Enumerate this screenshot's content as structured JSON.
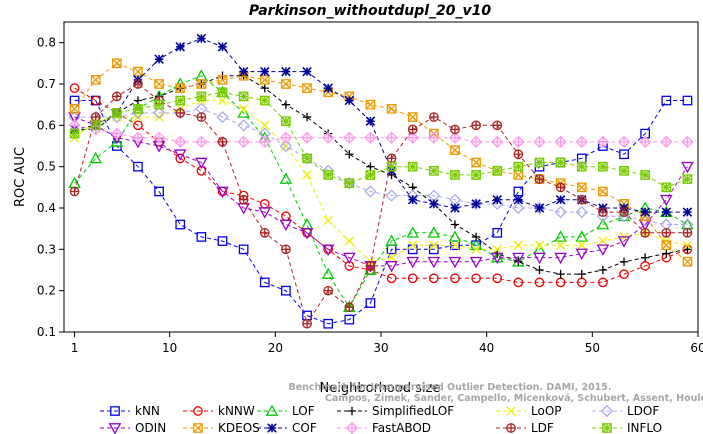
{
  "chart_data": {
    "type": "line",
    "title": "Parkinson_withoutdupl_20_v10",
    "xlabel": "Neighborhood size",
    "ylabel": "ROC AUC",
    "xlim": [
      0,
      60
    ],
    "ylim": [
      0.1,
      0.85
    ],
    "xticks": [
      "1",
      "10",
      "20",
      "30",
      "40",
      "50",
      "60"
    ],
    "yticks": [
      "0.1",
      "0.2",
      "0.3",
      "0.4",
      "0.5",
      "0.6",
      "0.7",
      "0.8"
    ],
    "x": [
      1,
      3,
      5,
      7,
      9,
      11,
      13,
      15,
      17,
      19,
      21,
      23,
      25,
      27,
      29,
      31,
      33,
      35,
      37,
      39,
      41,
      43,
      45,
      47,
      49,
      51,
      53,
      55,
      57,
      59
    ],
    "series": [
      {
        "name": "kNN",
        "color": "#0000ee",
        "marker": "square",
        "values": [
          0.66,
          0.66,
          0.55,
          0.5,
          0.44,
          0.36,
          0.33,
          0.32,
          0.3,
          0.22,
          0.2,
          0.14,
          0.12,
          0.13,
          0.17,
          0.3,
          0.3,
          0.3,
          0.31,
          0.31,
          0.34,
          0.44,
          0.5,
          0.51,
          0.52,
          0.55,
          0.53,
          0.58,
          0.66,
          0.66
        ]
      },
      {
        "name": "kNNW",
        "color": "#ee0000",
        "marker": "circle",
        "values": [
          0.69,
          0.66,
          0.63,
          0.6,
          0.56,
          0.52,
          0.49,
          0.44,
          0.43,
          0.41,
          0.38,
          0.34,
          0.3,
          0.26,
          0.25,
          0.23,
          0.23,
          0.23,
          0.23,
          0.23,
          0.23,
          0.22,
          0.22,
          0.22,
          0.22,
          0.22,
          0.24,
          0.26,
          0.28,
          0.3
        ]
      },
      {
        "name": "LOF",
        "color": "#00cc00",
        "marker": "triangle-up",
        "values": [
          0.46,
          0.52,
          0.56,
          0.64,
          0.67,
          0.7,
          0.72,
          0.68,
          0.63,
          0.57,
          0.47,
          0.36,
          0.24,
          0.16,
          0.25,
          0.32,
          0.34,
          0.34,
          0.33,
          0.31,
          0.28,
          0.27,
          0.3,
          0.33,
          0.33,
          0.36,
          0.38,
          0.4,
          0.39,
          0.36
        ]
      },
      {
        "name": "SimplifiedLOF",
        "color": "#000000",
        "marker": "plus",
        "values": [
          0.59,
          0.59,
          0.63,
          0.66,
          0.67,
          0.69,
          0.7,
          0.72,
          0.72,
          0.69,
          0.65,
          0.62,
          0.58,
          0.53,
          0.5,
          0.48,
          0.45,
          0.41,
          0.36,
          0.33,
          0.29,
          0.27,
          0.25,
          0.24,
          0.24,
          0.25,
          0.27,
          0.28,
          0.29,
          0.3
        ]
      },
      {
        "name": "LoOP",
        "color": "#eeee00",
        "marker": "x",
        "values": [
          0.57,
          0.61,
          0.62,
          0.62,
          0.62,
          0.64,
          0.66,
          0.66,
          0.64,
          0.6,
          0.55,
          0.48,
          0.37,
          0.32,
          0.27,
          0.28,
          0.31,
          0.31,
          0.31,
          0.3,
          0.3,
          0.31,
          0.31,
          0.31,
          0.31,
          0.32,
          0.33,
          0.34,
          0.32,
          0.31
        ]
      },
      {
        "name": "LDOF",
        "color": "#aaaaee",
        "marker": "diamond",
        "values": [
          0.62,
          0.62,
          0.62,
          0.63,
          0.63,
          0.63,
          0.64,
          0.62,
          0.6,
          0.58,
          0.55,
          0.52,
          0.49,
          0.46,
          0.44,
          0.43,
          0.43,
          0.43,
          0.42,
          0.41,
          0.41,
          0.4,
          0.4,
          0.39,
          0.39,
          0.38,
          0.38,
          0.37,
          0.36,
          0.36
        ]
      },
      {
        "name": "ODIN",
        "color": "#9900cc",
        "marker": "triangle-down",
        "values": [
          0.62,
          0.6,
          0.57,
          0.56,
          0.55,
          0.53,
          0.51,
          0.44,
          0.4,
          0.39,
          0.36,
          0.34,
          0.3,
          0.28,
          0.26,
          0.26,
          0.27,
          0.27,
          0.27,
          0.27,
          0.28,
          0.28,
          0.28,
          0.28,
          0.29,
          0.3,
          0.32,
          0.36,
          0.42,
          0.5
        ]
      },
      {
        "name": "KDEOS",
        "color": "#ee9900",
        "marker": "square-x",
        "values": [
          0.64,
          0.71,
          0.75,
          0.73,
          0.7,
          0.69,
          0.7,
          0.71,
          0.72,
          0.71,
          0.7,
          0.69,
          0.68,
          0.67,
          0.65,
          0.64,
          0.62,
          0.58,
          0.54,
          0.51,
          0.49,
          0.48,
          0.47,
          0.46,
          0.45,
          0.44,
          0.41,
          0.38,
          0.31,
          0.27
        ]
      },
      {
        "name": "COF",
        "color": "#000099",
        "marker": "asterisk",
        "values": [
          0.59,
          0.6,
          0.63,
          0.71,
          0.76,
          0.79,
          0.81,
          0.79,
          0.73,
          0.73,
          0.73,
          0.73,
          0.69,
          0.66,
          0.61,
          0.49,
          0.42,
          0.41,
          0.4,
          0.41,
          0.42,
          0.42,
          0.4,
          0.42,
          0.42,
          0.4,
          0.4,
          0.39,
          0.39,
          0.39
        ]
      },
      {
        "name": "FastABOD",
        "color": "#ff99ee",
        "marker": "diamond-plus",
        "values": [
          0.6,
          0.59,
          0.58,
          0.57,
          0.57,
          0.56,
          0.56,
          0.56,
          0.56,
          0.56,
          0.57,
          0.57,
          0.57,
          0.57,
          0.57,
          0.57,
          0.57,
          0.57,
          0.57,
          0.56,
          0.56,
          0.56,
          0.56,
          0.56,
          0.56,
          0.56,
          0.56,
          0.56,
          0.56,
          0.56
        ]
      },
      {
        "name": "LDF",
        "color": "#aa2222",
        "marker": "circle-plus",
        "values": [
          0.44,
          0.62,
          0.67,
          0.7,
          0.66,
          0.63,
          0.62,
          0.56,
          0.42,
          0.34,
          0.3,
          0.12,
          0.2,
          0.16,
          0.26,
          0.52,
          0.59,
          0.62,
          0.59,
          0.6,
          0.6,
          0.53,
          0.47,
          0.45,
          0.42,
          0.39,
          0.39,
          0.34,
          0.34,
          0.34
        ]
      },
      {
        "name": "INFLO",
        "color": "#77cc00",
        "marker": "star-box",
        "values": [
          0.58,
          0.6,
          0.63,
          0.64,
          0.65,
          0.66,
          0.67,
          0.68,
          0.67,
          0.66,
          0.61,
          0.52,
          0.48,
          0.46,
          0.48,
          0.5,
          0.5,
          0.49,
          0.48,
          0.48,
          0.49,
          0.5,
          0.51,
          0.51,
          0.5,
          0.5,
          0.49,
          0.48,
          0.45,
          0.47
        ]
      }
    ],
    "legend_position": "bottom",
    "grid": false
  },
  "credit": {
    "line1": "Benchmark for Unsupervised Outlier Detection. DAMI, 2015.",
    "line2": "Campos, Zimek, Sander, Campello, Micenková, Schubert, Assent, Houle"
  }
}
